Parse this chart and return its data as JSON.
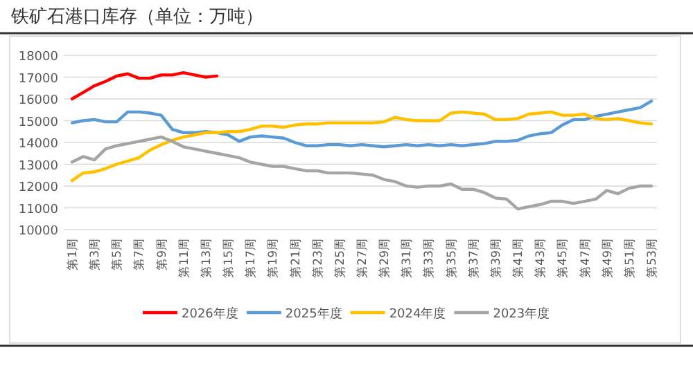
{
  "chart_data": {
    "type": "line",
    "title": "铁矿石港口库存（单位：万吨）",
    "categories": [
      "第1周",
      null,
      "第3周",
      null,
      "第5周",
      null,
      "第7周",
      null,
      "第9周",
      null,
      "第11周",
      null,
      "第13周",
      null,
      "第15周",
      null,
      "第17周",
      null,
      "第19周",
      null,
      "第21周",
      null,
      "第23周",
      null,
      "第25周",
      null,
      "第27周",
      null,
      "第29周",
      null,
      "第31周",
      null,
      "第33周",
      null,
      "第35周",
      null,
      "第37周",
      null,
      "第39周",
      null,
      "第41周",
      null,
      "第43周",
      null,
      "第45周",
      null,
      "第47周",
      null,
      "第49周",
      null,
      "第51周",
      null,
      "第53周"
    ],
    "series": [
      {
        "name": "2026年度",
        "color": "#ff0000",
        "values": [
          16000,
          16300,
          16600,
          16800,
          17050,
          17150,
          16950,
          16950,
          17100,
          17100,
          17200,
          17100,
          17000,
          17050,
          null,
          null,
          null,
          null,
          null,
          null,
          null,
          null,
          null,
          null,
          null,
          null,
          null,
          null,
          null,
          null,
          null,
          null,
          null,
          null,
          null,
          null,
          null,
          null,
          null,
          null,
          null,
          null,
          null,
          null,
          null,
          null,
          null,
          null,
          null,
          null,
          null,
          null,
          null
        ]
      },
      {
        "name": "2025年度",
        "color": "#5b9bd5",
        "values": [
          14900,
          15000,
          15050,
          14950,
          14950,
          15400,
          15400,
          15350,
          15250,
          14600,
          14450,
          14450,
          14500,
          14450,
          14350,
          14050,
          14250,
          14300,
          14250,
          14200,
          14000,
          13850,
          13850,
          13900,
          13900,
          13850,
          13900,
          13850,
          13800,
          13850,
          13900,
          13850,
          13900,
          13850,
          13900,
          13850,
          13900,
          13950,
          14050,
          14050,
          14100,
          14300,
          14400,
          14450,
          14800,
          15050,
          15050,
          15200,
          15300,
          15400,
          15500,
          15600,
          15900
        ]
      },
      {
        "name": "2024年度",
        "color": "#ffc000",
        "values": [
          12250,
          12600,
          12650,
          12800,
          13000,
          13150,
          13300,
          13650,
          13900,
          14100,
          14250,
          14350,
          14450,
          14450,
          14500,
          14500,
          14600,
          14750,
          14750,
          14700,
          14800,
          14850,
          14850,
          14900,
          14900,
          14900,
          14900,
          14900,
          14950,
          15150,
          15050,
          15000,
          15000,
          15000,
          15350,
          15400,
          15350,
          15300,
          15050,
          15050,
          15100,
          15300,
          15350,
          15400,
          15250,
          15250,
          15300,
          15100,
          15050,
          15100,
          15000,
          14900,
          14850
        ]
      },
      {
        "name": "2023年度",
        "color": "#a5a5a5",
        "values": [
          13100,
          13350,
          13200,
          13700,
          13850,
          13950,
          14050,
          14150,
          14250,
          14050,
          13800,
          13700,
          13600,
          13500,
          13400,
          13300,
          13100,
          13000,
          12900,
          12900,
          12800,
          12700,
          12700,
          12600,
          12600,
          12600,
          12550,
          12500,
          12300,
          12200,
          12000,
          11950,
          12000,
          12000,
          12100,
          11850,
          11850,
          11700,
          11450,
          11400,
          10950,
          11050,
          11150,
          11300,
          11300,
          11200,
          11300,
          11400,
          11800,
          11650,
          11900,
          12000,
          12000
        ]
      }
    ],
    "ylim": [
      10000,
      18000
    ],
    "yticks": [
      10000,
      11000,
      12000,
      13000,
      14000,
      15000,
      16000,
      17000,
      18000
    ],
    "grid": "y",
    "legend": "bottom"
  }
}
